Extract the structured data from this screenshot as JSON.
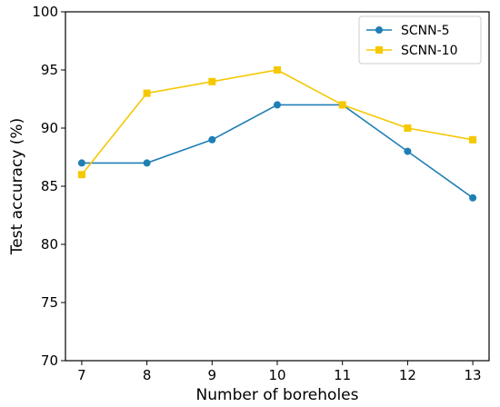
{
  "chart_data": {
    "type": "line",
    "xlabel": "Number of boreholes",
    "ylabel": "Test accuracy (%)",
    "x": [
      7,
      8,
      9,
      10,
      11,
      12,
      13
    ],
    "xlim": [
      6.75,
      13.25
    ],
    "ylim": [
      70,
      100
    ],
    "xticks": [
      7,
      8,
      9,
      10,
      11,
      12,
      13
    ],
    "yticks": [
      70,
      75,
      80,
      85,
      90,
      95,
      100
    ],
    "grid": false,
    "legend_position": "top-right",
    "series": [
      {
        "name": "SCNN-5",
        "values": [
          87,
          87,
          89,
          92,
          92,
          88,
          84
        ],
        "color": "#1f7fb4",
        "marker": "circle"
      },
      {
        "name": "SCNN-10",
        "values": [
          86,
          93,
          94,
          95,
          92,
          90,
          89
        ],
        "color": "#f5c800",
        "marker": "square"
      }
    ]
  }
}
